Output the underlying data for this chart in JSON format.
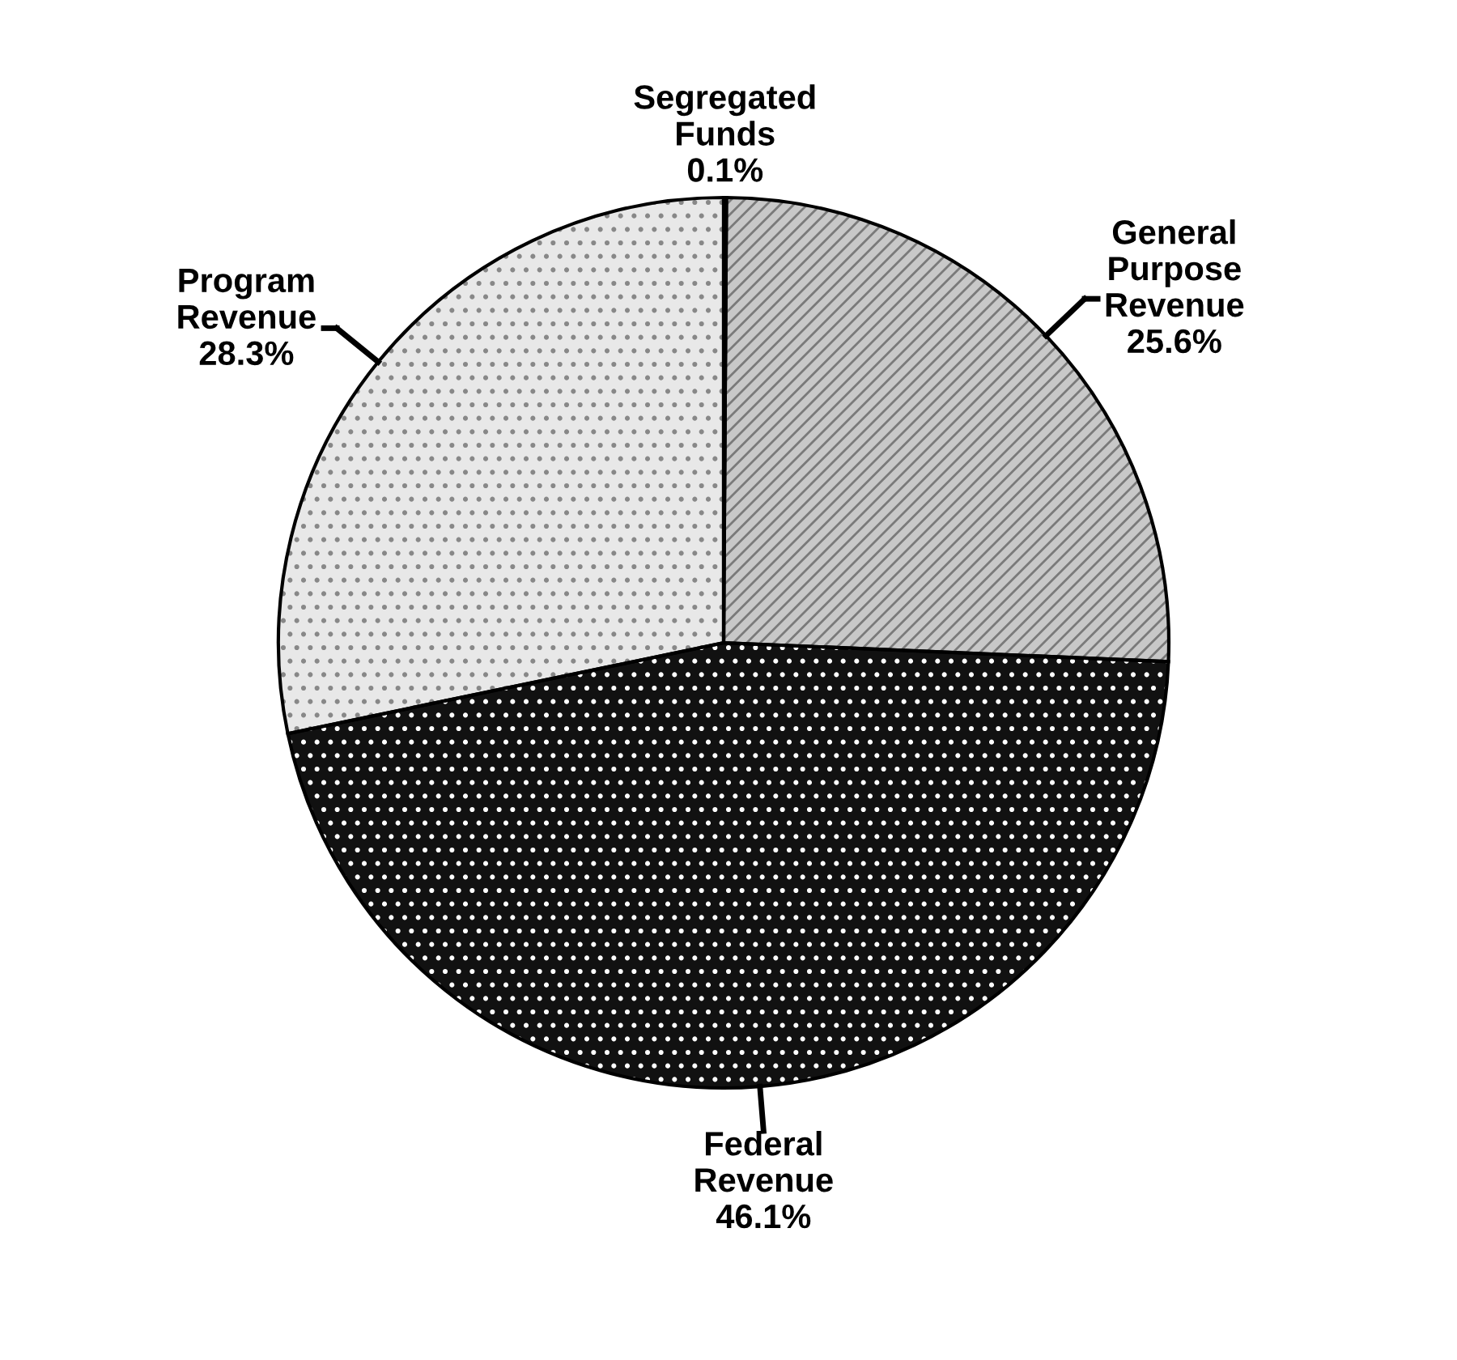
{
  "chart_data": {
    "type": "pie",
    "categories": [
      "Segregated\nFunds",
      "General\nPurpose\nRevenue",
      "Federal\nRevenue",
      "Program\nRevenue"
    ],
    "values": [
      0.1,
      25.6,
      46.1,
      28.3
    ],
    "colors": [
      "#ffffff",
      "#c8c8c8",
      "#111111",
      "#e8e8e8"
    ],
    "value_labels": [
      "0.1%",
      "25.6%",
      "46.1%",
      "28.3%"
    ]
  }
}
